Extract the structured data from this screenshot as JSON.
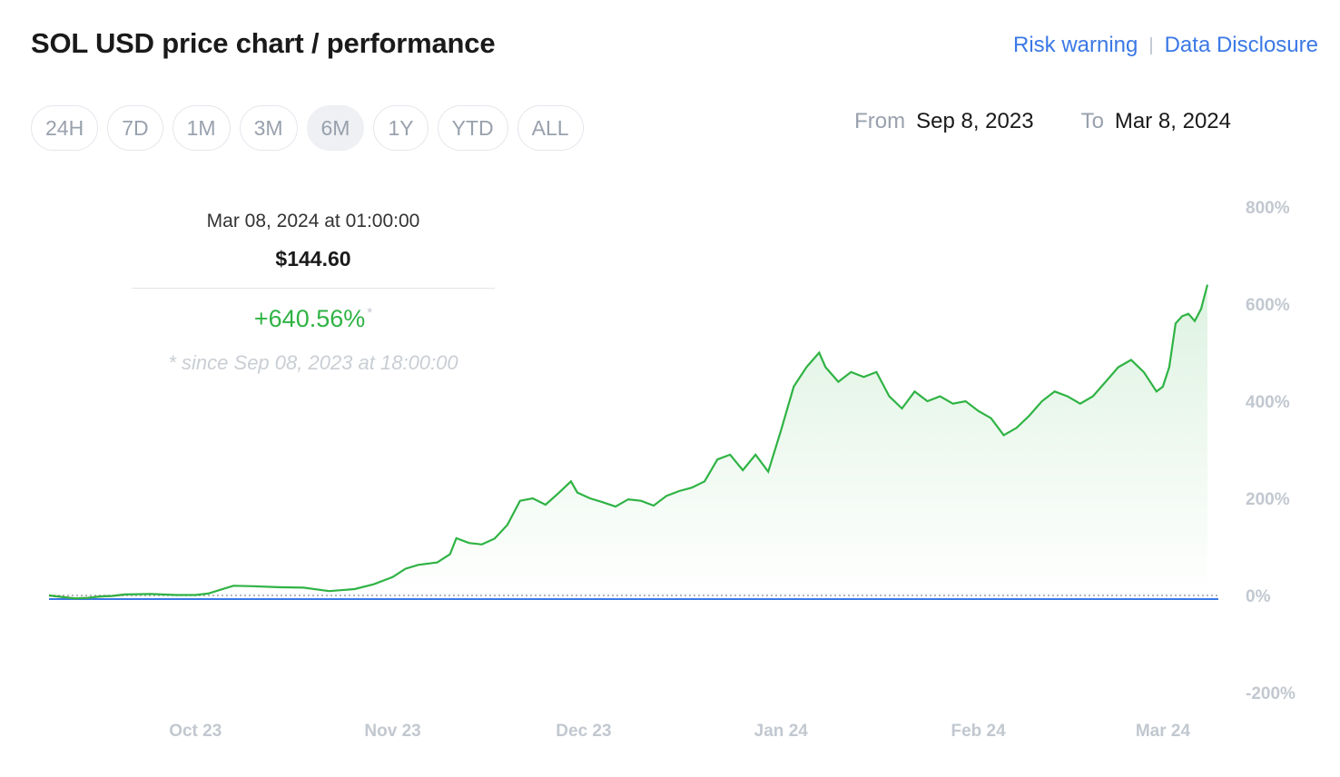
{
  "header": {
    "title": "SOL USD price chart / performance",
    "risk_warning": "Risk warning",
    "separator": "|",
    "data_disclosure": "Data Disclosure"
  },
  "ranges": [
    {
      "label": "24H",
      "active": false
    },
    {
      "label": "7D",
      "active": false
    },
    {
      "label": "1M",
      "active": false
    },
    {
      "label": "3M",
      "active": false
    },
    {
      "label": "6M",
      "active": true
    },
    {
      "label": "1Y",
      "active": false
    },
    {
      "label": "YTD",
      "active": false
    },
    {
      "label": "ALL",
      "active": false
    }
  ],
  "date_range": {
    "from_label": "From",
    "from_value": "Sep 8, 2023",
    "to_label": "To",
    "to_value": "Mar 8, 2024"
  },
  "tooltip": {
    "date": "Mar 08, 2024 at 01:00:00",
    "price": "$144.60",
    "change": "+640.56%",
    "change_marker": "*",
    "since": "* since Sep 08, 2023 at 18:00:00"
  },
  "colors": {
    "line_up": "#2fb344",
    "line_down": "#e0524a",
    "baseline": "#3a78e6",
    "link": "#3a78e6"
  },
  "chart_data": {
    "type": "area",
    "x_start": "2023-09-08",
    "x_end": "2024-03-08",
    "xticks": [
      "Oct 23",
      "Nov 23",
      "Dec 23",
      "Jan 24",
      "Feb 24",
      "Mar 24"
    ],
    "yticks": [
      "800%",
      "600%",
      "400%",
      "200%",
      "0%",
      "-200%"
    ],
    "ylim": [
      -200,
      800
    ],
    "series": [
      {
        "values": [
          [
            "2023-09-08",
            0
          ],
          [
            "2023-09-10",
            -3
          ],
          [
            "2023-09-12",
            -6
          ],
          [
            "2023-09-14",
            -5
          ],
          [
            "2023-09-16",
            -2
          ],
          [
            "2023-09-18",
            -1
          ],
          [
            "2023-09-20",
            2
          ],
          [
            "2023-09-24",
            3
          ],
          [
            "2023-09-28",
            1
          ],
          [
            "2023-10-01",
            1
          ],
          [
            "2023-10-03",
            4
          ],
          [
            "2023-10-05",
            12
          ],
          [
            "2023-10-07",
            20
          ],
          [
            "2023-10-10",
            19
          ],
          [
            "2023-10-14",
            17
          ],
          [
            "2023-10-18",
            16
          ],
          [
            "2023-10-22",
            9
          ],
          [
            "2023-10-26",
            13
          ],
          [
            "2023-10-29",
            23
          ],
          [
            "2023-11-01",
            38
          ],
          [
            "2023-11-03",
            55
          ],
          [
            "2023-11-05",
            63
          ],
          [
            "2023-11-08",
            68
          ],
          [
            "2023-11-10",
            85
          ],
          [
            "2023-11-11",
            118
          ],
          [
            "2023-11-13",
            108
          ],
          [
            "2023-11-15",
            105
          ],
          [
            "2023-11-17",
            117
          ],
          [
            "2023-11-19",
            145
          ],
          [
            "2023-11-21",
            195
          ],
          [
            "2023-11-23",
            200
          ],
          [
            "2023-11-25",
            187
          ],
          [
            "2023-11-27",
            210
          ],
          [
            "2023-11-29",
            235
          ],
          [
            "2023-11-30",
            212
          ],
          [
            "2023-12-02",
            200
          ],
          [
            "2023-12-04",
            192
          ],
          [
            "2023-12-06",
            183
          ],
          [
            "2023-12-08",
            198
          ],
          [
            "2023-12-10",
            195
          ],
          [
            "2023-12-12",
            185
          ],
          [
            "2023-12-14",
            205
          ],
          [
            "2023-12-16",
            215
          ],
          [
            "2023-12-18",
            222
          ],
          [
            "2023-12-20",
            235
          ],
          [
            "2023-12-22",
            280
          ],
          [
            "2023-12-24",
            290
          ],
          [
            "2023-12-26",
            258
          ],
          [
            "2023-12-28",
            290
          ],
          [
            "2023-12-30",
            255
          ],
          [
            "2024-01-01",
            340
          ],
          [
            "2024-01-03",
            430
          ],
          [
            "2024-01-05",
            470
          ],
          [
            "2024-01-07",
            500
          ],
          [
            "2024-01-08",
            470
          ],
          [
            "2024-01-10",
            440
          ],
          [
            "2024-01-12",
            460
          ],
          [
            "2024-01-14",
            450
          ],
          [
            "2024-01-16",
            460
          ],
          [
            "2024-01-18",
            410
          ],
          [
            "2024-01-20",
            385
          ],
          [
            "2024-01-22",
            420
          ],
          [
            "2024-01-24",
            400
          ],
          [
            "2024-01-26",
            410
          ],
          [
            "2024-01-28",
            395
          ],
          [
            "2024-01-30",
            400
          ],
          [
            "2024-02-01",
            380
          ],
          [
            "2024-02-03",
            365
          ],
          [
            "2024-02-05",
            330
          ],
          [
            "2024-02-07",
            345
          ],
          [
            "2024-02-09",
            370
          ],
          [
            "2024-02-11",
            400
          ],
          [
            "2024-02-13",
            420
          ],
          [
            "2024-02-15",
            410
          ],
          [
            "2024-02-17",
            395
          ],
          [
            "2024-02-19",
            410
          ],
          [
            "2024-02-21",
            440
          ],
          [
            "2024-02-23",
            470
          ],
          [
            "2024-02-25",
            485
          ],
          [
            "2024-02-27",
            460
          ],
          [
            "2024-02-29",
            420
          ],
          [
            "2024-03-01",
            430
          ],
          [
            "2024-03-02",
            470
          ],
          [
            "2024-03-03",
            560
          ],
          [
            "2024-03-04",
            575
          ],
          [
            "2024-03-05",
            580
          ],
          [
            "2024-03-06",
            565
          ],
          [
            "2024-03-07",
            590
          ],
          [
            "2024-03-08",
            640
          ]
        ]
      }
    ],
    "grid": false,
    "baseline_value": 0
  }
}
